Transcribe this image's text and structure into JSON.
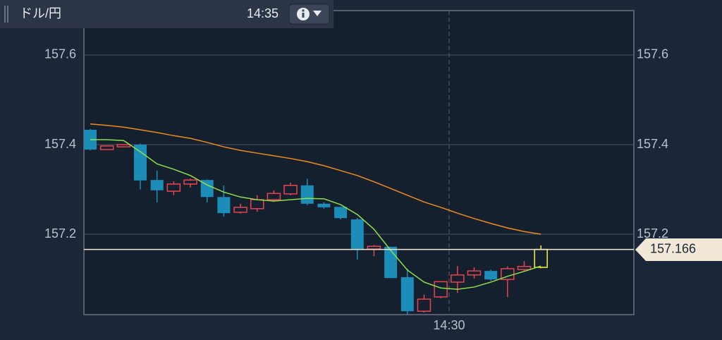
{
  "header": {
    "title": "ドル/円",
    "time": "14:35"
  },
  "chart_data": {
    "type": "candlestick",
    "x": [
      0,
      1,
      2,
      3,
      4,
      5,
      6,
      7,
      8,
      9,
      10,
      11,
      12,
      13,
      14,
      15,
      16,
      17,
      18,
      19,
      20,
      21,
      22,
      23,
      24,
      25,
      26,
      27
    ],
    "open": [
      157.433,
      157.389,
      157.395,
      157.4,
      157.321,
      157.296,
      157.312,
      157.321,
      157.283,
      157.249,
      157.257,
      157.277,
      157.29,
      157.309,
      157.268,
      157.261,
      157.233,
      157.167,
      157.172,
      157.104,
      157.028,
      157.06,
      157.093,
      157.109,
      157.118,
      157.099,
      157.121,
      157.126
    ],
    "high": [
      157.435,
      157.398,
      157.401,
      157.402,
      157.342,
      157.318,
      157.324,
      157.322,
      157.309,
      157.268,
      157.287,
      157.298,
      157.315,
      157.324,
      157.271,
      157.261,
      157.236,
      157.176,
      157.172,
      157.123,
      157.065,
      157.094,
      157.129,
      157.126,
      157.121,
      157.128,
      157.14,
      157.175
    ],
    "low": [
      157.387,
      157.388,
      157.394,
      157.3,
      157.271,
      157.287,
      157.304,
      157.271,
      157.239,
      157.246,
      157.25,
      157.272,
      157.287,
      157.265,
      157.257,
      157.233,
      157.143,
      157.151,
      157.102,
      157.019,
      157.025,
      157.057,
      157.069,
      157.101,
      157.096,
      157.06,
      157.118,
      157.124
    ],
    "close": [
      157.389,
      157.397,
      157.4,
      157.32,
      157.298,
      157.312,
      157.321,
      157.283,
      157.247,
      157.26,
      157.277,
      157.291,
      157.309,
      157.268,
      157.26,
      157.236,
      157.167,
      157.173,
      157.102,
      157.028,
      157.055,
      157.094,
      157.109,
      157.118,
      157.099,
      157.123,
      157.128,
      157.166
    ],
    "up_color": "#e8434f",
    "down_color": "#1b8db8",
    "last_color": "#f4f43a",
    "series": [
      {
        "color": "#8ee04a",
        "values": [
          157.411,
          157.411,
          157.409,
          157.384,
          157.357,
          157.345,
          157.331,
          157.31,
          157.294,
          157.283,
          157.277,
          157.274,
          157.277,
          157.28,
          157.279,
          157.266,
          157.244,
          157.211,
          157.164,
          157.12,
          157.093,
          157.08,
          157.077,
          157.082,
          157.093,
          157.106,
          157.117,
          157.129
        ]
      },
      {
        "color": "#f08a1c",
        "values": [
          157.446,
          157.443,
          157.439,
          157.433,
          157.427,
          157.42,
          157.414,
          157.405,
          157.395,
          157.387,
          157.381,
          157.375,
          157.369,
          157.362,
          157.353,
          157.342,
          157.331,
          157.317,
          157.302,
          157.287,
          157.272,
          157.26,
          157.247,
          157.235,
          157.224,
          157.214,
          157.206,
          157.2
        ]
      }
    ],
    "current_price": 157.166,
    "xlim": [
      -0.38,
      32.57
    ],
    "xticks": [
      {
        "value": 21.5,
        "label": "14:30"
      }
    ],
    "ylim": [
      157.0205,
      157.6992
    ],
    "yticks": [
      157.2,
      157.4,
      157.6
    ],
    "grid": true
  }
}
